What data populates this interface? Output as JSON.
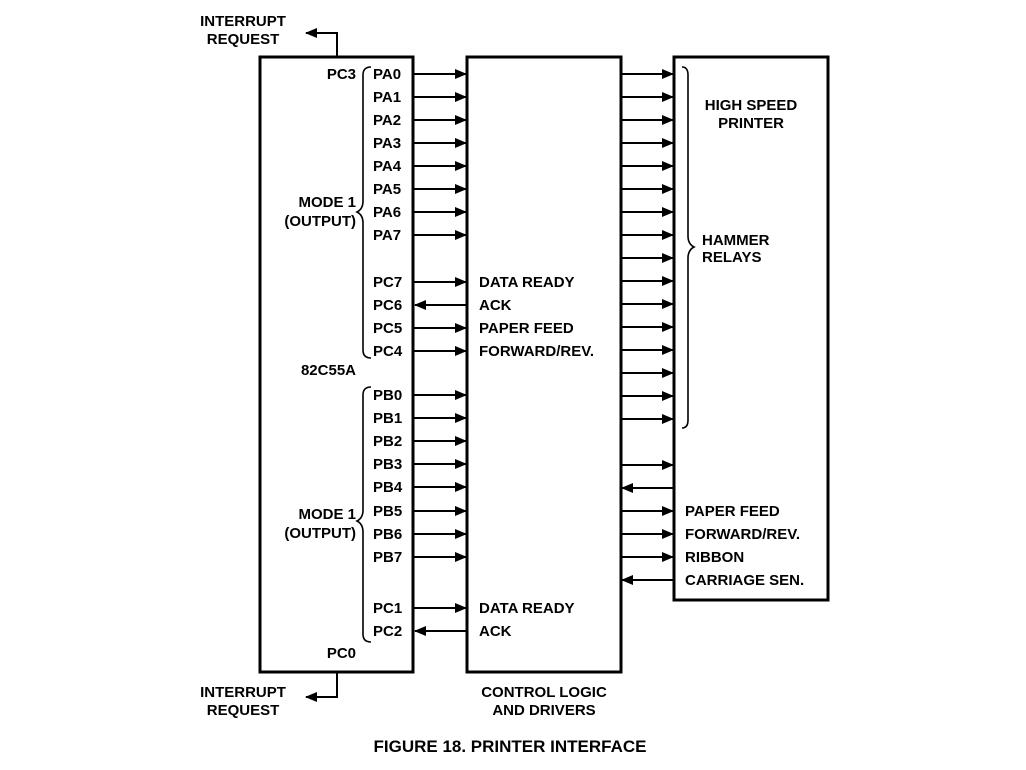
{
  "figure_caption": "FIGURE 18.  PRINTER INTERFACE",
  "chip": {
    "name": "82C55A",
    "interrupt_top": [
      "INTERRUPT",
      "REQUEST"
    ],
    "interrupt_bottom": [
      "INTERRUPT",
      "REQUEST"
    ],
    "pc3": "PC3",
    "pc0": "PC0",
    "mode_a": [
      "MODE 1",
      "(OUTPUT)"
    ],
    "mode_b": [
      "MODE 1",
      "(OUTPUT)"
    ],
    "pins_a": [
      {
        "label": "PA0",
        "dir": "out",
        "signal": ""
      },
      {
        "label": "PA1",
        "dir": "out",
        "signal": ""
      },
      {
        "label": "PA2",
        "dir": "out",
        "signal": ""
      },
      {
        "label": "PA3",
        "dir": "out",
        "signal": ""
      },
      {
        "label": "PA4",
        "dir": "out",
        "signal": ""
      },
      {
        "label": "PA5",
        "dir": "out",
        "signal": ""
      },
      {
        "label": "PA6",
        "dir": "out",
        "signal": ""
      },
      {
        "label": "PA7",
        "dir": "out",
        "signal": ""
      },
      {
        "label": "PC7",
        "dir": "out",
        "signal": "DATA READY"
      },
      {
        "label": "PC6",
        "dir": "in",
        "signal": "ACK"
      },
      {
        "label": "PC5",
        "dir": "out",
        "signal": "PAPER FEED"
      },
      {
        "label": "PC4",
        "dir": "out",
        "signal": "FORWARD/REV."
      }
    ],
    "pins_b": [
      {
        "label": "PB0",
        "dir": "out",
        "signal": ""
      },
      {
        "label": "PB1",
        "dir": "out",
        "signal": ""
      },
      {
        "label": "PB2",
        "dir": "out",
        "signal": ""
      },
      {
        "label": "PB3",
        "dir": "out",
        "signal": ""
      },
      {
        "label": "PB4",
        "dir": "out",
        "signal": ""
      },
      {
        "label": "PB5",
        "dir": "out",
        "signal": ""
      },
      {
        "label": "PB6",
        "dir": "out",
        "signal": ""
      },
      {
        "label": "PB7",
        "dir": "out",
        "signal": ""
      },
      {
        "label": "PC1",
        "dir": "out",
        "signal": "DATA READY"
      },
      {
        "label": "PC2",
        "dir": "in",
        "signal": "ACK"
      }
    ]
  },
  "control": {
    "label": [
      "CONTROL LOGIC",
      "AND DRIVERS"
    ],
    "hammer_lines_count": 16,
    "bottom_lines": [
      {
        "dir": "out",
        "signal": ""
      },
      {
        "dir": "in",
        "signal": ""
      },
      {
        "dir": "out",
        "signal": "PAPER FEED"
      },
      {
        "dir": "out",
        "signal": "FORWARD/REV."
      },
      {
        "dir": "out",
        "signal": "RIBBON"
      },
      {
        "dir": "in",
        "signal": "CARRIAGE SEN."
      }
    ]
  },
  "printer": {
    "title": [
      "HIGH SPEED",
      "PRINTER"
    ],
    "hammer_label": [
      "HAMMER",
      "RELAYS"
    ]
  }
}
